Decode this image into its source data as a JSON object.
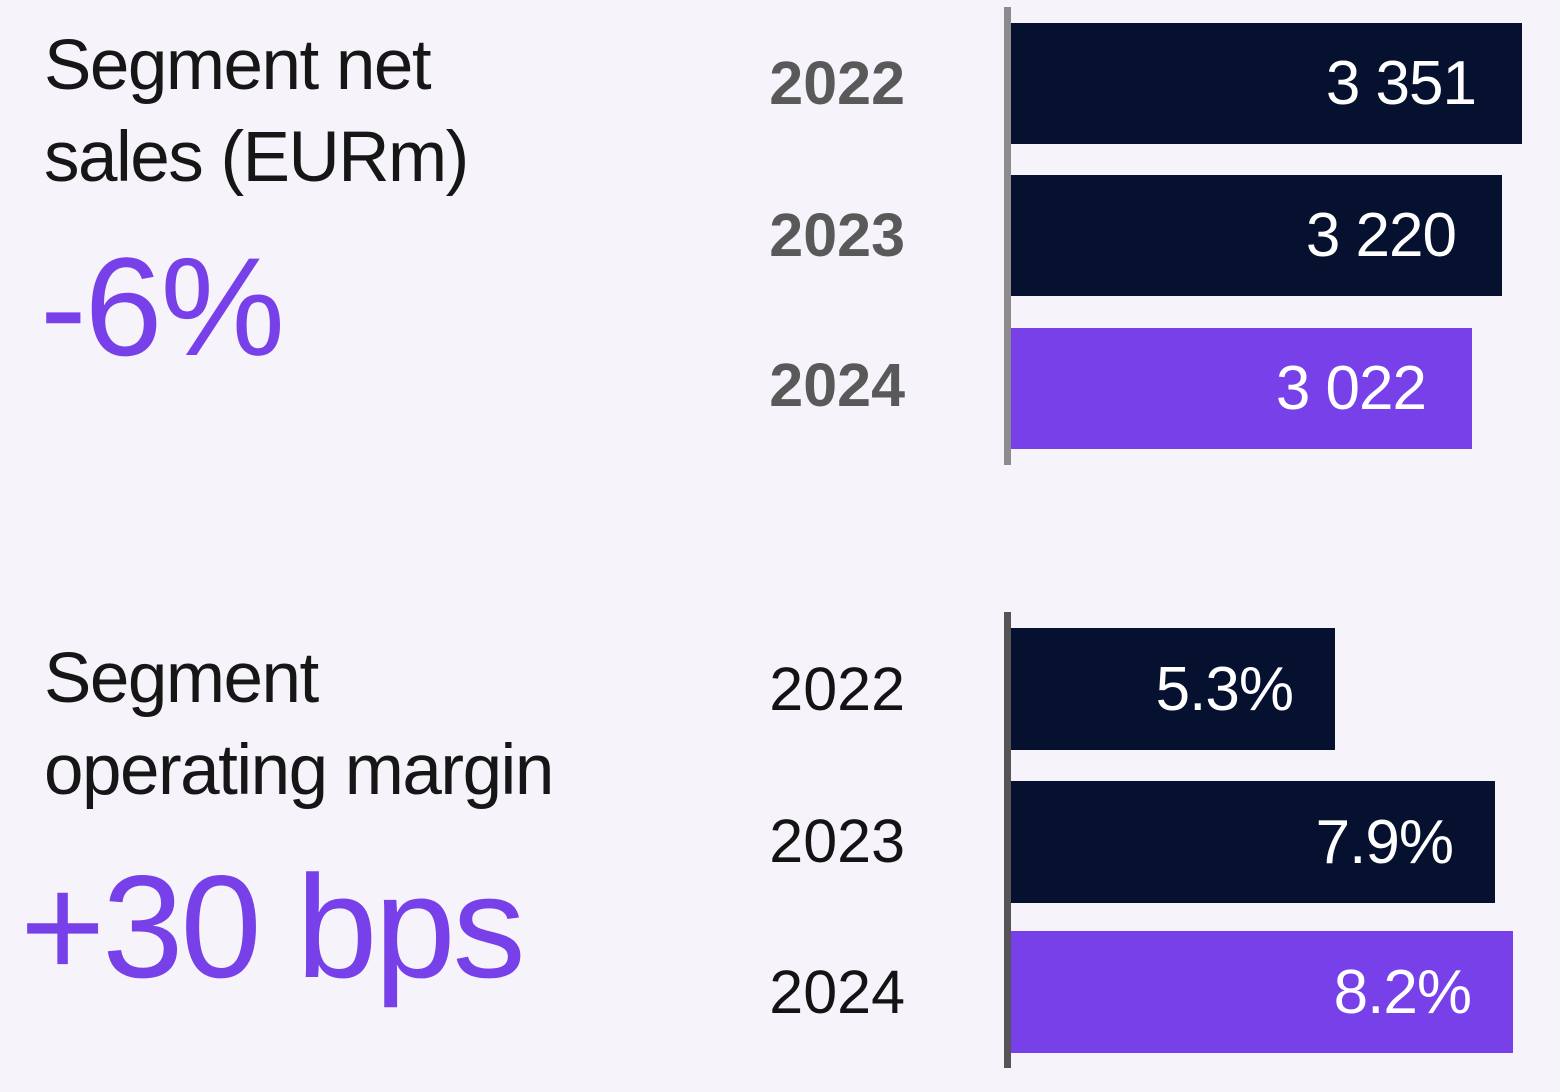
{
  "background": "#f6f4fa",
  "colors": {
    "bar_navy": "#061130",
    "bar_purple": "#7840e8",
    "accent_purple": "#7840e8",
    "axis_gray_top": "#8c8c8c",
    "axis_gray_bottom": "#555555",
    "year_label_gray": "#595959",
    "year_label_black": "#131313",
    "title_black": "#161616",
    "value_white": "#ffffff"
  },
  "chart_data": [
    {
      "type": "bar",
      "orientation": "horizontal",
      "title": "Segment net sales (EURm)",
      "title_lines": [
        "Segment net",
        "sales (EURm)"
      ],
      "annotation": "-6%",
      "categories": [
        "2022",
        "2023",
        "2024"
      ],
      "values": [
        3351,
        3220,
        3022
      ],
      "data_labels": [
        "3 351",
        "3 220",
        "3 022"
      ],
      "bar_colors": [
        "#061130",
        "#061130",
        "#7840e8"
      ],
      "xlim": [
        0,
        3351
      ],
      "grid": false,
      "legend": "none"
    },
    {
      "type": "bar",
      "orientation": "horizontal",
      "title": "Segment operating margin",
      "title_lines": [
        "Segment",
        "operating margin"
      ],
      "annotation": "+30 bps",
      "categories": [
        "2022",
        "2023",
        "2024"
      ],
      "values": [
        5.3,
        7.9,
        8.2
      ],
      "data_labels": [
        "5.3%",
        "7.9%",
        "8.2%"
      ],
      "bar_colors": [
        "#061130",
        "#061130",
        "#7840e8"
      ],
      "xlim": [
        0,
        8.2
      ],
      "grid": false,
      "legend": "none"
    }
  ]
}
